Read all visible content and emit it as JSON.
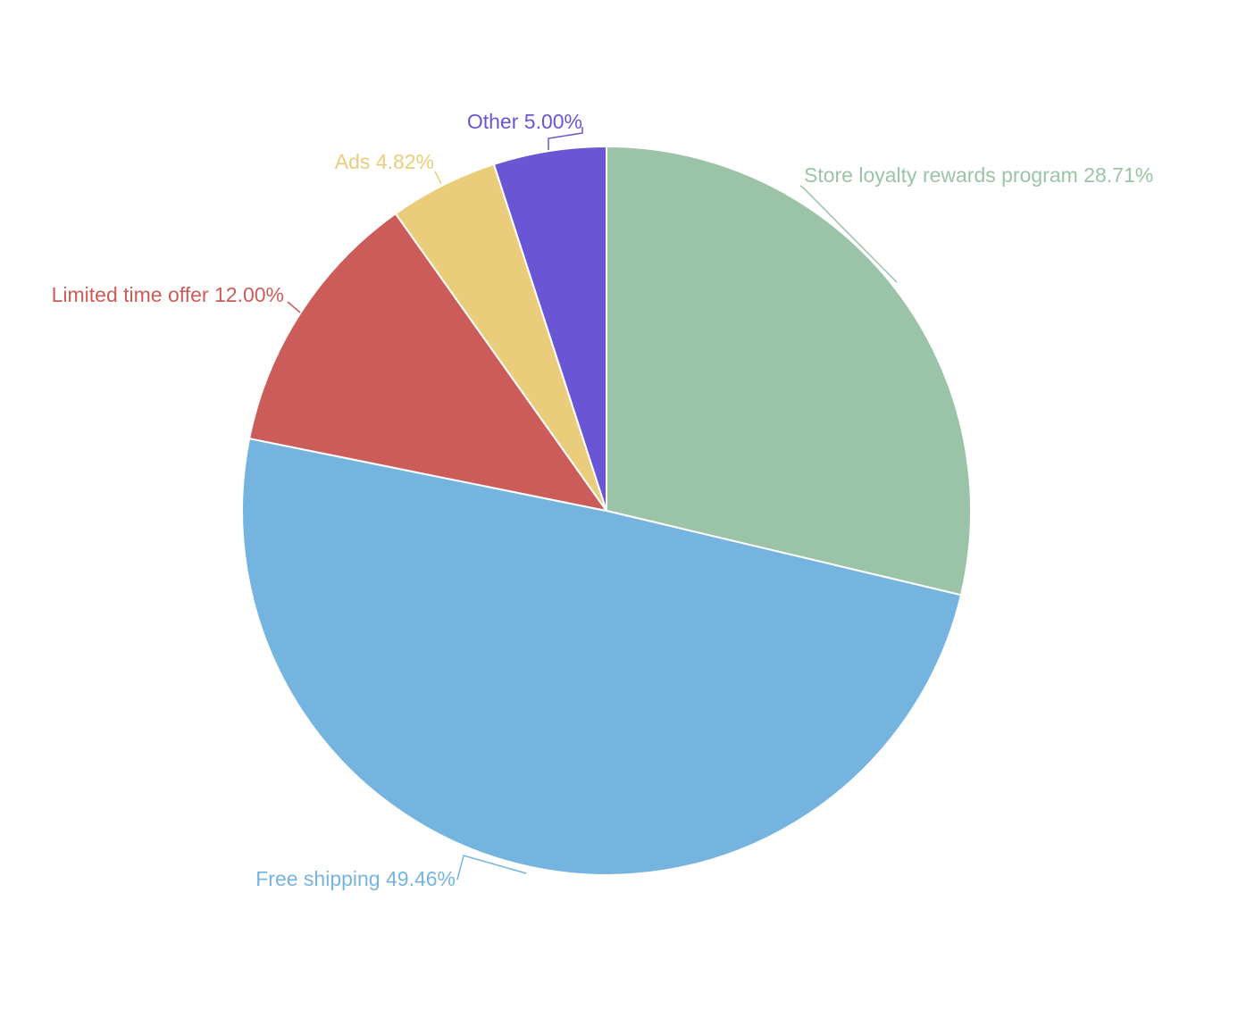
{
  "chart_data": {
    "type": "pie",
    "slices": [
      {
        "label": "Store loyalty rewards program",
        "value": 28.71,
        "value_text": "28.71%",
        "color": "#9bc3a8"
      },
      {
        "label": "Free shipping",
        "value": 49.46,
        "value_text": "49.46%",
        "color": "#76b4e0"
      },
      {
        "label": "Limited time offer",
        "value": 12.0,
        "value_text": "12.00%",
        "color": "#cc5c5a"
      },
      {
        "label": "Ads",
        "value": 4.82,
        "value_text": "4.82%",
        "color": "#e9cd7a"
      },
      {
        "label": "Other",
        "value": 5.0,
        "value_text": "5.00%",
        "color": "#6a56d5"
      }
    ],
    "start_angle": "12 o'clock",
    "direction": "clockwise",
    "legend": "none",
    "labels": "outside with callout lines"
  }
}
